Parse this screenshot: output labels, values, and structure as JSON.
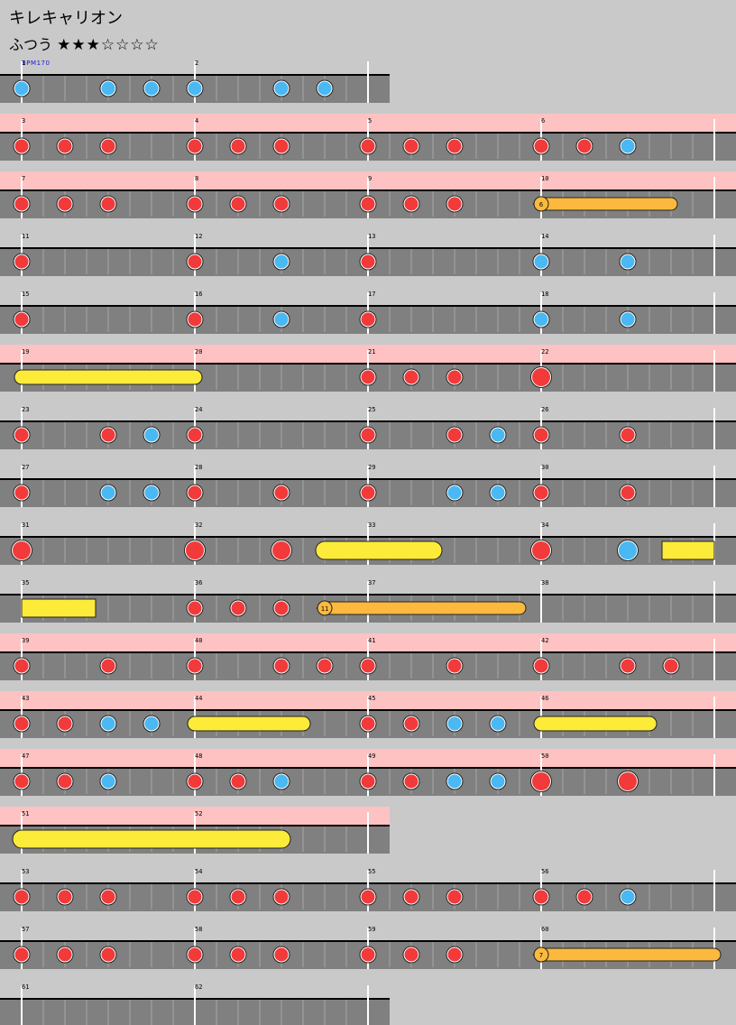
{
  "title": "キレキャリオン",
  "difficulty_label": "ふつう",
  "stars": "★★★☆☆☆☆",
  "bpm_label": "BPM170",
  "colors": {
    "background": "#c9c9c9",
    "lane": "#808080",
    "gogo_band": "#ffc2c2",
    "don": "#f23a3a",
    "ka": "#4ab8f2",
    "drumroll": "#fdeb3a",
    "balloon": "#fcb93d"
  },
  "rows": [
    {
      "bars": 2,
      "gogo": false,
      "measures": [
        1,
        2
      ],
      "notes": [
        {
          "m": 0,
          "p": 0,
          "t": "ka"
        },
        {
          "m": 0,
          "p": 4,
          "t": "ka"
        },
        {
          "m": 0,
          "p": 6,
          "t": "ka"
        },
        {
          "m": 1,
          "p": 0,
          "t": "ka"
        },
        {
          "m": 1,
          "p": 4,
          "t": "ka"
        },
        {
          "m": 1,
          "p": 6,
          "t": "ka"
        }
      ]
    },
    {
      "bars": 4,
      "gogo": true,
      "measures": [
        3,
        4,
        5,
        6
      ],
      "notes": [
        {
          "m": 0,
          "p": 0,
          "t": "don"
        },
        {
          "m": 0,
          "p": 2,
          "t": "don"
        },
        {
          "m": 0,
          "p": 4,
          "t": "don"
        },
        {
          "m": 1,
          "p": 0,
          "t": "don"
        },
        {
          "m": 1,
          "p": 2,
          "t": "don"
        },
        {
          "m": 1,
          "p": 4,
          "t": "don"
        },
        {
          "m": 2,
          "p": 0,
          "t": "don"
        },
        {
          "m": 2,
          "p": 2,
          "t": "don"
        },
        {
          "m": 2,
          "p": 4,
          "t": "don"
        },
        {
          "m": 3,
          "p": 0,
          "t": "don"
        },
        {
          "m": 3,
          "p": 2,
          "t": "don"
        },
        {
          "m": 3,
          "p": 4,
          "t": "ka"
        }
      ]
    },
    {
      "bars": 4,
      "gogo": true,
      "measures": [
        7,
        8,
        9,
        10
      ],
      "notes": [
        {
          "m": 0,
          "p": 0,
          "t": "don"
        },
        {
          "m": 0,
          "p": 2,
          "t": "don"
        },
        {
          "m": 0,
          "p": 4,
          "t": "don"
        },
        {
          "m": 1,
          "p": 0,
          "t": "don"
        },
        {
          "m": 1,
          "p": 2,
          "t": "don"
        },
        {
          "m": 1,
          "p": 4,
          "t": "don"
        },
        {
          "m": 2,
          "p": 0,
          "t": "don"
        },
        {
          "m": 2,
          "p": 2,
          "t": "don"
        },
        {
          "m": 2,
          "p": 4,
          "t": "don"
        }
      ],
      "rolls": [
        {
          "sm": 3,
          "sp": 0,
          "em": 3,
          "ep": 6,
          "t": "balloon",
          "count": "6"
        }
      ]
    },
    {
      "bars": 4,
      "gogo": false,
      "measures": [
        11,
        12,
        13,
        14
      ],
      "notes": [
        {
          "m": 0,
          "p": 0,
          "t": "don"
        },
        {
          "m": 1,
          "p": 0,
          "t": "don"
        },
        {
          "m": 1,
          "p": 4,
          "t": "ka"
        },
        {
          "m": 2,
          "p": 0,
          "t": "don"
        },
        {
          "m": 3,
          "p": 0,
          "t": "ka"
        },
        {
          "m": 3,
          "p": 4,
          "t": "ka"
        }
      ]
    },
    {
      "bars": 4,
      "gogo": false,
      "measures": [
        15,
        16,
        17,
        18
      ],
      "notes": [
        {
          "m": 0,
          "p": 0,
          "t": "don"
        },
        {
          "m": 1,
          "p": 0,
          "t": "don"
        },
        {
          "m": 1,
          "p": 4,
          "t": "ka"
        },
        {
          "m": 2,
          "p": 0,
          "t": "don"
        },
        {
          "m": 3,
          "p": 0,
          "t": "ka"
        },
        {
          "m": 3,
          "p": 4,
          "t": "ka"
        }
      ]
    },
    {
      "bars": 4,
      "gogo": true,
      "measures": [
        19,
        20,
        21,
        22
      ],
      "notes": [
        {
          "m": 2,
          "p": 0,
          "t": "don"
        },
        {
          "m": 2,
          "p": 2,
          "t": "don"
        },
        {
          "m": 2,
          "p": 4,
          "t": "don"
        },
        {
          "m": 3,
          "p": 0,
          "t": "don-big"
        }
      ],
      "rolls": [
        {
          "sm": 0,
          "sp": 0,
          "em": 1,
          "ep": 0,
          "t": "roll"
        }
      ]
    },
    {
      "bars": 4,
      "gogo": false,
      "measures": [
        23,
        24,
        25,
        26
      ],
      "notes": [
        {
          "m": 0,
          "p": 0,
          "t": "don"
        },
        {
          "m": 0,
          "p": 4,
          "t": "don"
        },
        {
          "m": 0,
          "p": 6,
          "t": "ka"
        },
        {
          "m": 1,
          "p": 0,
          "t": "don"
        },
        {
          "m": 2,
          "p": 0,
          "t": "don"
        },
        {
          "m": 2,
          "p": 4,
          "t": "don"
        },
        {
          "m": 2,
          "p": 6,
          "t": "ka"
        },
        {
          "m": 3,
          "p": 0,
          "t": "don"
        },
        {
          "m": 3,
          "p": 4,
          "t": "don"
        }
      ]
    },
    {
      "bars": 4,
      "gogo": false,
      "measures": [
        27,
        28,
        29,
        30
      ],
      "notes": [
        {
          "m": 0,
          "p": 0,
          "t": "don"
        },
        {
          "m": 0,
          "p": 4,
          "t": "ka"
        },
        {
          "m": 0,
          "p": 6,
          "t": "ka"
        },
        {
          "m": 1,
          "p": 0,
          "t": "don"
        },
        {
          "m": 1,
          "p": 4,
          "t": "don"
        },
        {
          "m": 2,
          "p": 0,
          "t": "don"
        },
        {
          "m": 2,
          "p": 4,
          "t": "ka"
        },
        {
          "m": 2,
          "p": 6,
          "t": "ka"
        },
        {
          "m": 3,
          "p": 0,
          "t": "don"
        },
        {
          "m": 3,
          "p": 4,
          "t": "don"
        }
      ]
    },
    {
      "bars": 4,
      "gogo": false,
      "measures": [
        31,
        32,
        33,
        34
      ],
      "notes": [
        {
          "m": 0,
          "p": 0,
          "t": "don-big"
        },
        {
          "m": 1,
          "p": 0,
          "t": "don-big"
        },
        {
          "m": 1,
          "p": 4,
          "t": "don-big"
        },
        {
          "m": 3,
          "p": 0,
          "t": "don-big"
        },
        {
          "m": 3,
          "p": 4,
          "t": "ka-big"
        }
      ],
      "rolls": [
        {
          "sm": 1,
          "sp": 6,
          "em": 2,
          "ep": 3,
          "t": "roll-big"
        },
        {
          "sm": 3,
          "sp": 6,
          "em": 4,
          "ep": 0,
          "t": "roll-big",
          "open_end": true
        }
      ]
    },
    {
      "bars": 4,
      "gogo": false,
      "measures": [
        35,
        36,
        37,
        38
      ],
      "notes": [
        {
          "m": 1,
          "p": 0,
          "t": "don"
        },
        {
          "m": 1,
          "p": 2,
          "t": "don"
        },
        {
          "m": 1,
          "p": 4,
          "t": "don"
        }
      ],
      "rolls": [
        {
          "sm": 0,
          "sp": 0,
          "em": 0,
          "ep": 3,
          "t": "roll-big",
          "open_start": true
        },
        {
          "sm": 1,
          "sp": 6,
          "em": 2,
          "ep": 7,
          "t": "balloon",
          "count": "11"
        }
      ]
    },
    {
      "bars": 4,
      "gogo": true,
      "measures": [
        39,
        40,
        41,
        42
      ],
      "notes": [
        {
          "m": 0,
          "p": 0,
          "t": "don"
        },
        {
          "m": 0,
          "p": 4,
          "t": "don"
        },
        {
          "m": 1,
          "p": 0,
          "t": "don"
        },
        {
          "m": 1,
          "p": 4,
          "t": "don"
        },
        {
          "m": 1,
          "p": 6,
          "t": "don"
        },
        {
          "m": 2,
          "p": 0,
          "t": "don"
        },
        {
          "m": 2,
          "p": 4,
          "t": "don"
        },
        {
          "m": 3,
          "p": 0,
          "t": "don"
        },
        {
          "m": 3,
          "p": 4,
          "t": "don"
        },
        {
          "m": 3,
          "p": 6,
          "t": "don"
        }
      ]
    },
    {
      "bars": 4,
      "gogo": true,
      "measures": [
        43,
        44,
        45,
        46
      ],
      "notes": [
        {
          "m": 0,
          "p": 0,
          "t": "don"
        },
        {
          "m": 0,
          "p": 2,
          "t": "don"
        },
        {
          "m": 0,
          "p": 4,
          "t": "ka"
        },
        {
          "m": 0,
          "p": 6,
          "t": "ka"
        },
        {
          "m": 2,
          "p": 0,
          "t": "don"
        },
        {
          "m": 2,
          "p": 2,
          "t": "don"
        },
        {
          "m": 2,
          "p": 4,
          "t": "ka"
        },
        {
          "m": 2,
          "p": 6,
          "t": "ka"
        }
      ],
      "rolls": [
        {
          "sm": 1,
          "sp": 0,
          "em": 1,
          "ep": 5,
          "t": "roll"
        },
        {
          "sm": 3,
          "sp": 0,
          "em": 3,
          "ep": 5,
          "t": "roll"
        }
      ]
    },
    {
      "bars": 4,
      "gogo": true,
      "measures": [
        47,
        48,
        49,
        50
      ],
      "notes": [
        {
          "m": 0,
          "p": 0,
          "t": "don"
        },
        {
          "m": 0,
          "p": 2,
          "t": "don"
        },
        {
          "m": 0,
          "p": 4,
          "t": "ka"
        },
        {
          "m": 1,
          "p": 0,
          "t": "don"
        },
        {
          "m": 1,
          "p": 2,
          "t": "don"
        },
        {
          "m": 1,
          "p": 4,
          "t": "ka"
        },
        {
          "m": 2,
          "p": 0,
          "t": "don"
        },
        {
          "m": 2,
          "p": 2,
          "t": "don"
        },
        {
          "m": 2,
          "p": 4,
          "t": "ka"
        },
        {
          "m": 2,
          "p": 6,
          "t": "ka"
        },
        {
          "m": 3,
          "p": 0,
          "t": "don-big"
        },
        {
          "m": 3,
          "p": 4,
          "t": "don-big"
        }
      ]
    },
    {
      "bars": 2,
      "gogo": true,
      "measures": [
        51,
        52
      ],
      "notes": [],
      "rolls": [
        {
          "sm": 0,
          "sp": 0,
          "em": 1,
          "ep": 4,
          "t": "roll-big"
        }
      ]
    },
    {
      "bars": 4,
      "gogo": false,
      "measures": [
        53,
        54,
        55,
        56
      ],
      "notes": [
        {
          "m": 0,
          "p": 0,
          "t": "don"
        },
        {
          "m": 0,
          "p": 2,
          "t": "don"
        },
        {
          "m": 0,
          "p": 4,
          "t": "don"
        },
        {
          "m": 1,
          "p": 0,
          "t": "don"
        },
        {
          "m": 1,
          "p": 2,
          "t": "don"
        },
        {
          "m": 1,
          "p": 4,
          "t": "don"
        },
        {
          "m": 2,
          "p": 0,
          "t": "don"
        },
        {
          "m": 2,
          "p": 2,
          "t": "don"
        },
        {
          "m": 2,
          "p": 4,
          "t": "don"
        },
        {
          "m": 3,
          "p": 0,
          "t": "don"
        },
        {
          "m": 3,
          "p": 2,
          "t": "don"
        },
        {
          "m": 3,
          "p": 4,
          "t": "ka"
        }
      ]
    },
    {
      "bars": 4,
      "gogo": false,
      "measures": [
        57,
        58,
        59,
        60
      ],
      "notes": [
        {
          "m": 0,
          "p": 0,
          "t": "don"
        },
        {
          "m": 0,
          "p": 2,
          "t": "don"
        },
        {
          "m": 0,
          "p": 4,
          "t": "don"
        },
        {
          "m": 1,
          "p": 0,
          "t": "don"
        },
        {
          "m": 1,
          "p": 2,
          "t": "don"
        },
        {
          "m": 1,
          "p": 4,
          "t": "don"
        },
        {
          "m": 2,
          "p": 0,
          "t": "don"
        },
        {
          "m": 2,
          "p": 2,
          "t": "don"
        },
        {
          "m": 2,
          "p": 4,
          "t": "don"
        }
      ],
      "rolls": [
        {
          "sm": 3,
          "sp": 0,
          "em": 4,
          "ep": 0,
          "t": "balloon",
          "count": "7"
        }
      ]
    },
    {
      "bars": 2,
      "gogo": false,
      "measures": [
        61,
        62
      ],
      "notes": []
    }
  ]
}
